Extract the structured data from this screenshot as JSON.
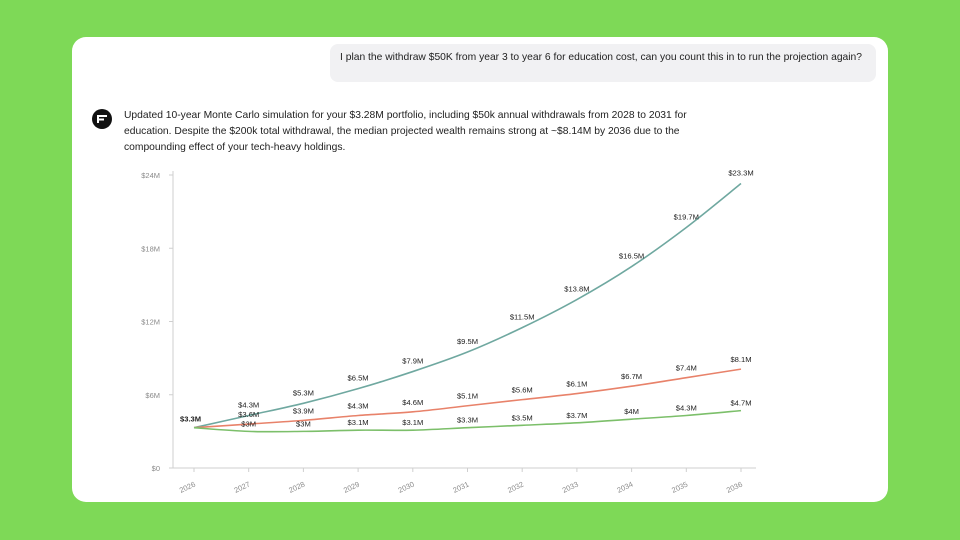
{
  "conversation": {
    "user_message": "I plan the withdraw $50K from year 3 to year 6 for education cost, can you count this in to run the projection again?",
    "assistant_message": "Updated 10-year Monte Carlo simulation for your $3.28M portfolio, including $50k annual withdrawals from 2028 to 2031 for education. Despite the $200k total withdrawal, the median projected wealth remains strong at ~$8.14M by 2036 due to the compounding effect of your tech-heavy holdings."
  },
  "avatar": {
    "icon": "assistant-logo-icon",
    "color": "#111111"
  },
  "chart_data": {
    "type": "line",
    "title": "",
    "xlabel": "",
    "ylabel": "",
    "x": [
      "2026",
      "2027",
      "2028",
      "2029",
      "2030",
      "2031",
      "2032",
      "2033",
      "2034",
      "2035",
      "2036"
    ],
    "ylim": [
      0,
      24
    ],
    "yticks": [
      "$0",
      "$6M",
      "$12M",
      "$18M",
      "$24M"
    ],
    "grid": false,
    "legend": "none",
    "series": [
      {
        "color": "#6fa8a0",
        "values": [
          3.3,
          4.3,
          5.3,
          6.5,
          7.9,
          9.5,
          11.5,
          13.8,
          16.5,
          19.7,
          23.3
        ],
        "labels": [
          "$3.3M",
          "$4.3M",
          "$5.3M",
          "$6.5M",
          "$7.9M",
          "$9.5M",
          "$11.5M",
          "$13.8M",
          "$16.5M",
          "$19.7M",
          "$23.3M"
        ]
      },
      {
        "color": "#e8826a",
        "values": [
          3.3,
          3.6,
          3.9,
          4.3,
          4.6,
          5.1,
          5.6,
          6.1,
          6.7,
          7.4,
          8.1
        ],
        "labels": [
          "$3.3M",
          "$3.6M",
          "$3.9M",
          "$4.3M",
          "$4.6M",
          "$5.1M",
          "$5.6M",
          "$6.1M",
          "$6.7M",
          "$7.4M",
          "$8.1M"
        ]
      },
      {
        "color": "#7cbf6a",
        "values": [
          3.3,
          3.0,
          3.0,
          3.1,
          3.1,
          3.3,
          3.5,
          3.7,
          4.0,
          4.3,
          4.7
        ],
        "labels": [
          "$3.3M",
          "$3M",
          "$3M",
          "$3.1M",
          "$3.1M",
          "$3.3M",
          "$3.5M",
          "$3.7M",
          "$4M",
          "$4.3M",
          "$4.7M"
        ]
      }
    ]
  }
}
